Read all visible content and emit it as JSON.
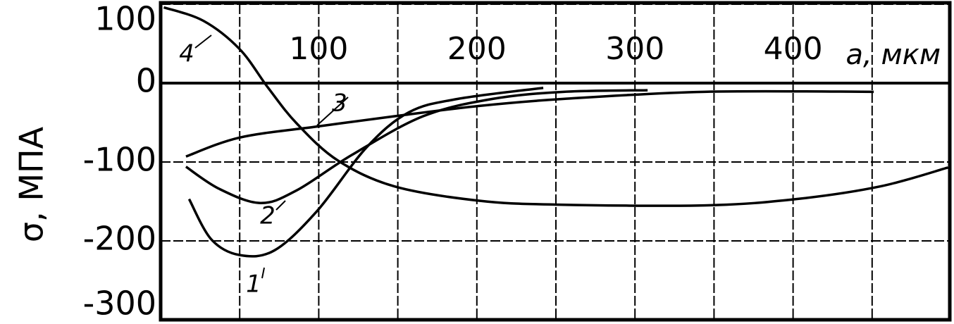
{
  "chart_data": {
    "type": "line",
    "x_label": "a, мкм",
    "y_label": "σ, МПА",
    "xlim": [
      0,
      500
    ],
    "ylim": [
      -300,
      100
    ],
    "xticks": [
      100,
      200,
      300,
      400
    ],
    "xminorticks": [
      50,
      150,
      250,
      350,
      450
    ],
    "yticks": [
      100,
      0,
      -100,
      -200,
      -300
    ],
    "grid": true,
    "series": [
      {
        "name": "1",
        "color": "#000000",
        "x": [
          18,
          32,
          50,
          72,
          99,
          130,
          157,
          188,
          242
        ],
        "values": [
          -147,
          -198,
          -218,
          -212,
          -162,
          -82,
          -37,
          -20,
          -6
        ]
      },
      {
        "name": "2",
        "color": "#000000",
        "x": [
          16,
          37,
          63,
          86,
          121,
          166,
          210,
          255,
          308
        ],
        "values": [
          -106,
          -134,
          -152,
          -136,
          -91,
          -42,
          -20,
          -11,
          -9
        ]
      },
      {
        "name": "3",
        "color": "#000000",
        "x": [
          16,
          50,
          99,
          148,
          201,
          255,
          344,
          451
        ],
        "values": [
          -93,
          -69,
          -55,
          -42,
          -29,
          -20,
          -11,
          -11
        ]
      },
      {
        "name": "4",
        "color": "#000000",
        "x": [
          2,
          27,
          50,
          68,
          86,
          112,
          148,
          201,
          250,
          344,
          402,
          455,
          498
        ],
        "values": [
          96,
          79,
          43,
          -6,
          -51,
          -98,
          -131,
          -149,
          -154,
          -155,
          -147,
          -131,
          -107
        ]
      }
    ]
  }
}
